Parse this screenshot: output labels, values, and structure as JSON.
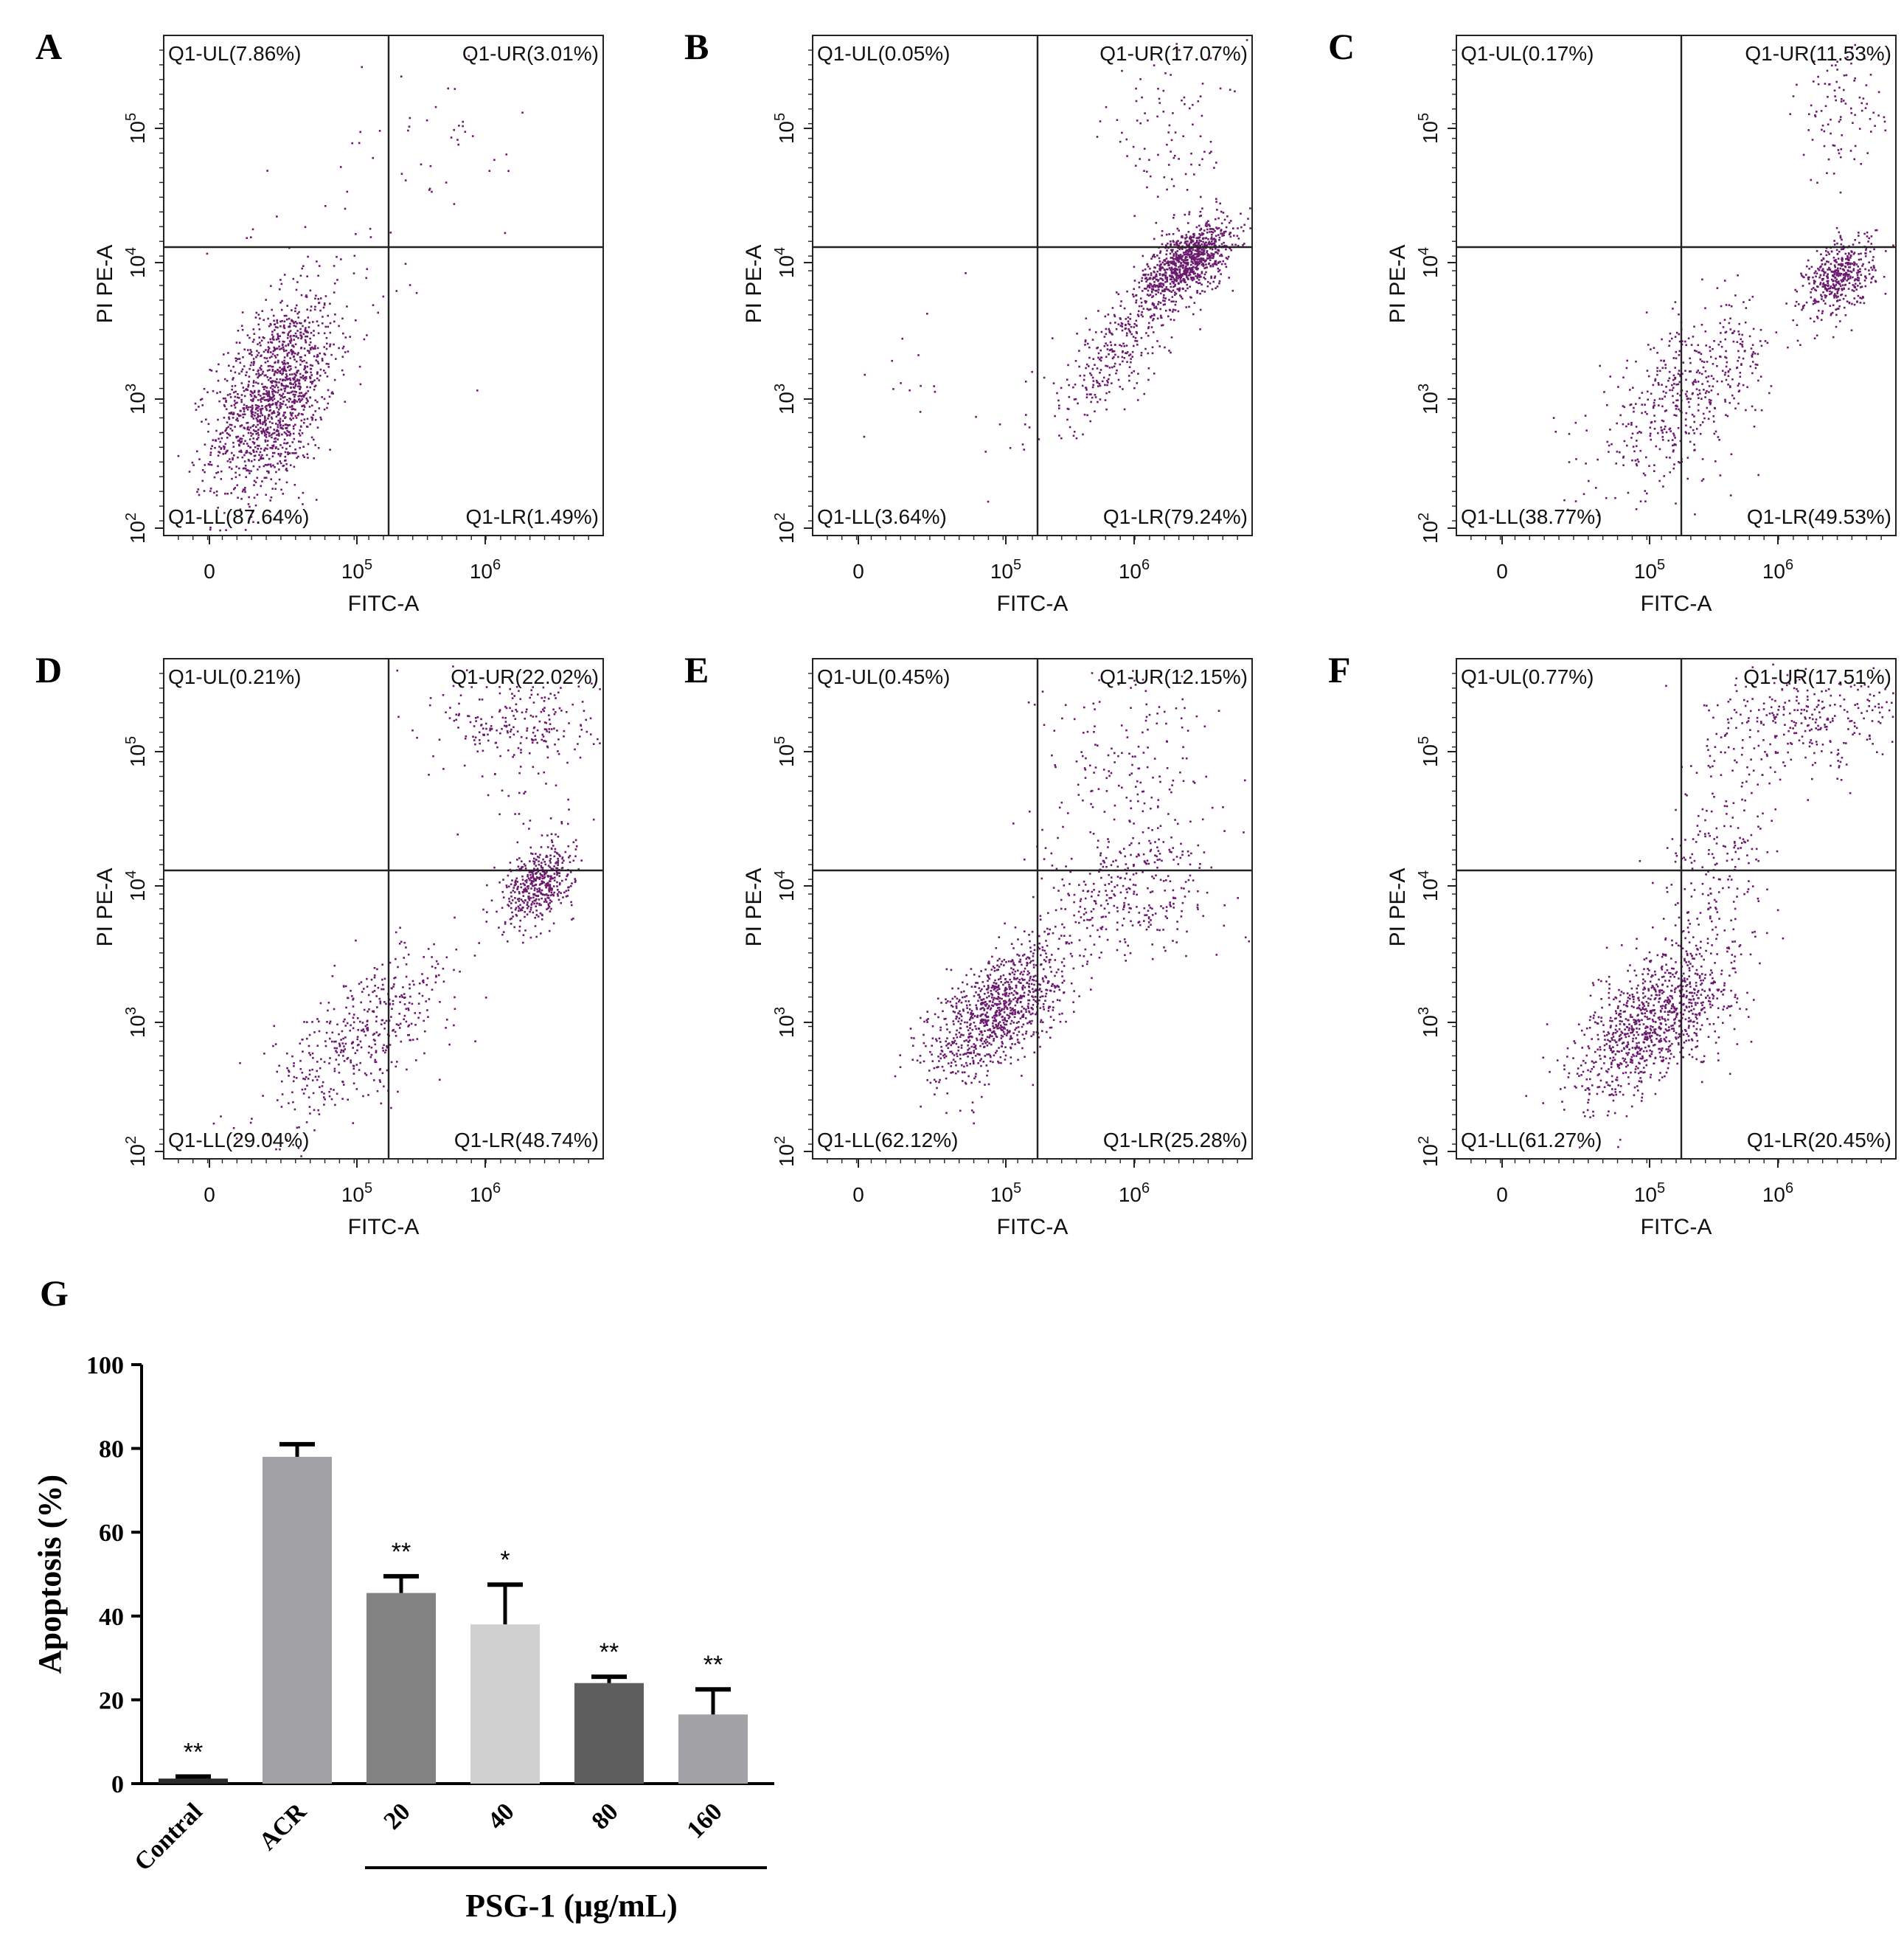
{
  "chart_data": [
    {
      "type": "scatter",
      "panel": "A",
      "xlabel": "FITC-A",
      "ylabel": "PI PE-A",
      "x_ticks": [
        "0",
        "10^5",
        "10^6"
      ],
      "y_ticks": [
        "10^2",
        "10^3",
        "10^4",
        "10^5"
      ],
      "quadrants": {
        "UL": "Q1-UL(7.86%)",
        "UR": "Q1-UR(3.01%)",
        "LL": "Q1-LL(87.64%)",
        "LR": "Q1-LR(1.49%)"
      },
      "quadrant_percent": {
        "UL": 7.86,
        "UR": 3.01,
        "LL": 87.64,
        "LR": 1.49
      },
      "point_color": "#6b1a6e"
    },
    {
      "type": "scatter",
      "panel": "B",
      "xlabel": "FITC-A",
      "ylabel": "PI PE-A",
      "x_ticks": [
        "0",
        "10^5",
        "10^6"
      ],
      "y_ticks": [
        "10^2",
        "10^3",
        "10^4",
        "10^5"
      ],
      "quadrants": {
        "UL": "Q1-UL(0.05%)",
        "UR": "Q1-UR(17.07%)",
        "LL": "Q1-LL(3.64%)",
        "LR": "Q1-LR(79.24%)"
      },
      "quadrant_percent": {
        "UL": 0.05,
        "UR": 17.07,
        "LL": 3.64,
        "LR": 79.24
      },
      "point_color": "#6b1a6e"
    },
    {
      "type": "scatter",
      "panel": "C",
      "xlabel": "FITC-A",
      "ylabel": "PI PE-A",
      "x_ticks": [
        "0",
        "10^5",
        "10^6"
      ],
      "y_ticks": [
        "10^2",
        "10^3",
        "10^4",
        "10^5"
      ],
      "quadrants": {
        "UL": "Q1-UL(0.17%)",
        "UR": "Q1-UR(11.53%)",
        "LL": "Q1-LL(38.77%)",
        "LR": "Q1-LR(49.53%)"
      },
      "quadrant_percent": {
        "UL": 0.17,
        "UR": 11.53,
        "LL": 38.77,
        "LR": 49.53
      },
      "point_color": "#6b1a6e"
    },
    {
      "type": "scatter",
      "panel": "D",
      "xlabel": "FITC-A",
      "ylabel": "PI PE-A",
      "x_ticks": [
        "0",
        "10^5",
        "10^6"
      ],
      "y_ticks": [
        "10^2",
        "10^3",
        "10^4",
        "10^5"
      ],
      "quadrants": {
        "UL": "Q1-UL(0.21%)",
        "UR": "Q1-UR(22.02%)",
        "LL": "Q1-LL(29.04%)",
        "LR": "Q1-LR(48.74%)"
      },
      "quadrant_percent": {
        "UL": 0.21,
        "UR": 22.02,
        "LL": 29.04,
        "LR": 48.74
      },
      "point_color": "#6b1a6e"
    },
    {
      "type": "scatter",
      "panel": "E",
      "xlabel": "FITC-A",
      "ylabel": "PI PE-A",
      "x_ticks": [
        "0",
        "10^5",
        "10^6"
      ],
      "y_ticks": [
        "10^2",
        "10^3",
        "10^4",
        "10^5"
      ],
      "quadrants": {
        "UL": "Q1-UL(0.45%)",
        "UR": "Q1-UR(12.15%)",
        "LL": "Q1-LL(62.12%)",
        "LR": "Q1-LR(25.28%)"
      },
      "quadrant_percent": {
        "UL": 0.45,
        "UR": 12.15,
        "LL": 62.12,
        "LR": 25.28
      },
      "point_color": "#6b1a6e"
    },
    {
      "type": "scatter",
      "panel": "F",
      "xlabel": "FITC-A",
      "ylabel": "PI PE-A",
      "x_ticks": [
        "0",
        "10^5",
        "10^6"
      ],
      "y_ticks": [
        "10^2",
        "10^3",
        "10^4",
        "10^5"
      ],
      "quadrants": {
        "UL": "Q1-UL(0.77%)",
        "UR": "Q1-UR(17.51%)",
        "LL": "Q1-LL(61.27%)",
        "LR": "Q1-LR(20.45%)"
      },
      "quadrant_percent": {
        "UL": 0.77,
        "UR": 17.51,
        "LL": 61.27,
        "LR": 20.45
      },
      "point_color": "#6b1a6e"
    },
    {
      "type": "bar",
      "panel": "G",
      "ylabel": "Apoptosis (%)",
      "group_label": "PSG-1 (μg/mL)",
      "categories": [
        "Contral",
        "ACR",
        "20",
        "40",
        "80",
        "160"
      ],
      "values": [
        1.2,
        78,
        45.5,
        38,
        24,
        16.5
      ],
      "errors": [
        0.5,
        3,
        4,
        9.5,
        1.5,
        6
      ],
      "significance": [
        "**",
        "",
        "**",
        "*",
        "**",
        "**"
      ],
      "colors": [
        "#2b2b2b",
        "#a1a1a6",
        "#838383",
        "#d0d0d0",
        "#5e5e5e",
        "#a1a1a6"
      ],
      "ylim": [
        0,
        100
      ],
      "y_ticks": [
        "0",
        "20",
        "40",
        "60",
        "80",
        "100"
      ]
    }
  ]
}
